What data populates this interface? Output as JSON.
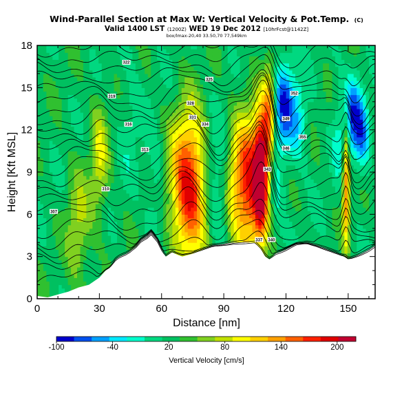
{
  "chart_data": {
    "type": "heatmap",
    "title": "Wind-Parallel Section at Max W: Vertical Velocity & Pot.Temp.",
    "title_mark": "(C)",
    "subtitle_valid": "Valid 1400 LST",
    "subtitle_utc": "(1200Z)",
    "subtitle_date": "WED 19 Dec 2012",
    "subtitle_run": "[10hrFcst@1142Z]",
    "subtitle_small": "box/lmax-20,40 33.50,70 77,549km",
    "xlabel": "Distance [nm]",
    "ylabel": "Height [Kft MSL]",
    "xlim": [
      0,
      163
    ],
    "ylim": [
      0,
      18
    ],
    "xticks": [
      "0",
      "30",
      "60",
      "90",
      "120",
      "150"
    ],
    "yticks": [
      "0",
      "3",
      "6",
      "9",
      "12",
      "15",
      "18"
    ],
    "colorbar": {
      "label": "Vertical Velocity [cm/s]",
      "range": [
        -100,
        220
      ],
      "tick_labels": [
        "-100",
        "-40",
        "20",
        "80",
        "140",
        "200"
      ],
      "colors": [
        "#0000cc",
        "#0050ee",
        "#00a0ff",
        "#00e8ff",
        "#00ffcc",
        "#00d880",
        "#00c060",
        "#30c030",
        "#80d020",
        "#c0e000",
        "#ffff00",
        "#ffd000",
        "#ffa000",
        "#ff6000",
        "#ff2000",
        "#e00000",
        "#c00030"
      ]
    },
    "velocity_features": [
      {
        "x": 73,
        "z": 8.0,
        "w": 175,
        "sx": 6,
        "sz": 3.5
      },
      {
        "x": 86,
        "z": 8.0,
        "w": -45,
        "sx": 4,
        "sz": 2.8
      },
      {
        "x": 101,
        "z": 8.0,
        "w": 160,
        "sx": 5,
        "sz": 3.5
      },
      {
        "x": 108,
        "z": 8.8,
        "w": 210,
        "sx": 2.5,
        "sz": 3.0
      },
      {
        "x": 116,
        "z": 8.0,
        "w": -30,
        "sx": 3,
        "sz": 2.8
      },
      {
        "x": 94,
        "z": 7.5,
        "w": 20,
        "sx": 2,
        "sz": 2.5
      },
      {
        "x": 119,
        "z": 14.0,
        "w": -95,
        "sx": 3.5,
        "sz": 2.2
      },
      {
        "x": 126,
        "z": 12.5,
        "w": -50,
        "sx": 3,
        "sz": 2
      },
      {
        "x": 152,
        "z": 13.0,
        "w": -90,
        "sx": 3,
        "sz": 2
      },
      {
        "x": 157,
        "z": 11.5,
        "w": -70,
        "sx": 2.5,
        "sz": 1.8
      },
      {
        "x": 149,
        "z": 8.0,
        "w": 130,
        "sx": 1.2,
        "sz": 3
      },
      {
        "x": 112,
        "z": 13.0,
        "w": 110,
        "sx": 2,
        "sz": 2.5
      },
      {
        "x": 145,
        "z": 12.0,
        "w": -25,
        "sx": 2,
        "sz": 3
      },
      {
        "x": 45,
        "z": 13.0,
        "w": -20,
        "sx": 4,
        "sz": 3
      },
      {
        "x": 30,
        "z": 10.0,
        "w": 60,
        "sx": 3,
        "sz": 3
      },
      {
        "x": 57,
        "z": 7.5,
        "w": -30,
        "sx": 3,
        "sz": 2.5
      },
      {
        "x": 20,
        "z": 5.0,
        "w": 50,
        "sx": 4,
        "sz": 3
      }
    ],
    "terrain_profile": {
      "x": [
        0,
        5,
        10,
        15,
        20,
        25,
        30,
        33,
        35,
        38,
        40,
        43,
        45,
        48,
        50,
        53,
        55,
        58,
        60,
        62,
        65,
        68,
        70,
        75,
        80,
        85,
        90,
        95,
        100,
        105,
        108,
        110,
        112,
        115,
        120,
        125,
        130,
        135,
        140,
        145,
        148,
        150,
        153,
        156,
        160,
        163
      ],
      "z": [
        0.2,
        0.1,
        0.3,
        0.5,
        0.8,
        1.0,
        1.5,
        2.0,
        2.2,
        2.8,
        3.0,
        3.2,
        3.4,
        3.8,
        4.2,
        4.5,
        4.8,
        4.2,
        3.5,
        3.0,
        3.3,
        3.1,
        3.0,
        3.2,
        3.5,
        3.8,
        3.9,
        4.0,
        4.0,
        4.0,
        3.5,
        3.0,
        2.8,
        3.2,
        3.5,
        3.9,
        4.0,
        3.8,
        3.5,
        3.2,
        3.0,
        2.8,
        3.0,
        3.2,
        3.5,
        3.8
      ]
    },
    "theta_contour_labels": [
      {
        "text": "307",
        "x": 8,
        "z": 6.2
      },
      {
        "text": "310",
        "x": 33,
        "z": 7.8
      },
      {
        "text": "313",
        "x": 52,
        "z": 10.6
      },
      {
        "text": "316",
        "x": 44,
        "z": 12.4
      },
      {
        "text": "319",
        "x": 36,
        "z": 14.4
      },
      {
        "text": "322",
        "x": 43,
        "z": 16.8
      },
      {
        "text": "325",
        "x": 83,
        "z": 15.6
      },
      {
        "text": "328",
        "x": 74,
        "z": 13.9
      },
      {
        "text": "331",
        "x": 75,
        "z": 12.9
      },
      {
        "text": "334",
        "x": 81,
        "z": 12.4
      },
      {
        "text": "337",
        "x": 107,
        "z": 4.2
      },
      {
        "text": "340",
        "x": 113,
        "z": 4.2
      },
      {
        "text": "343",
        "x": 111,
        "z": 9.2
      },
      {
        "text": "346",
        "x": 120,
        "z": 10.7
      },
      {
        "text": "349",
        "x": 120,
        "z": 12.8
      },
      {
        "text": "352",
        "x": 124,
        "z": 14.6
      },
      {
        "text": "355",
        "x": 128,
        "z": 11.5
      }
    ]
  }
}
